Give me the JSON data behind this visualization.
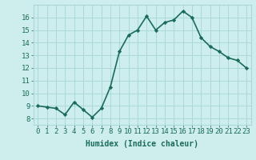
{
  "x": [
    0,
    1,
    2,
    3,
    4,
    5,
    6,
    7,
    8,
    9,
    10,
    11,
    12,
    13,
    14,
    15,
    16,
    17,
    18,
    19,
    20,
    21,
    22,
    23
  ],
  "y": [
    9.0,
    8.9,
    8.8,
    8.3,
    9.3,
    8.7,
    8.1,
    8.8,
    10.5,
    13.3,
    14.6,
    15.0,
    16.1,
    15.0,
    15.6,
    15.8,
    16.5,
    16.0,
    14.4,
    13.7,
    13.3,
    12.8,
    12.6,
    12.0
  ],
  "line_color": "#1a6b5a",
  "marker": "D",
  "marker_size": 2.2,
  "bg_color": "#cdeeed",
  "grid_color": "#aad8d8",
  "xlabel": "Humidex (Indice chaleur)",
  "xlim": [
    -0.5,
    23.5
  ],
  "ylim": [
    7.5,
    17.0
  ],
  "yticks": [
    8,
    9,
    10,
    11,
    12,
    13,
    14,
    15,
    16
  ],
  "xtick_labels": [
    "0",
    "1",
    "2",
    "3",
    "4",
    "5",
    "6",
    "7",
    "8",
    "9",
    "10",
    "11",
    "12",
    "13",
    "14",
    "15",
    "16",
    "17",
    "18",
    "19",
    "20",
    "21",
    "22",
    "23"
  ],
  "xlabel_fontsize": 7,
  "tick_fontsize": 6.5,
  "line_width": 1.2
}
